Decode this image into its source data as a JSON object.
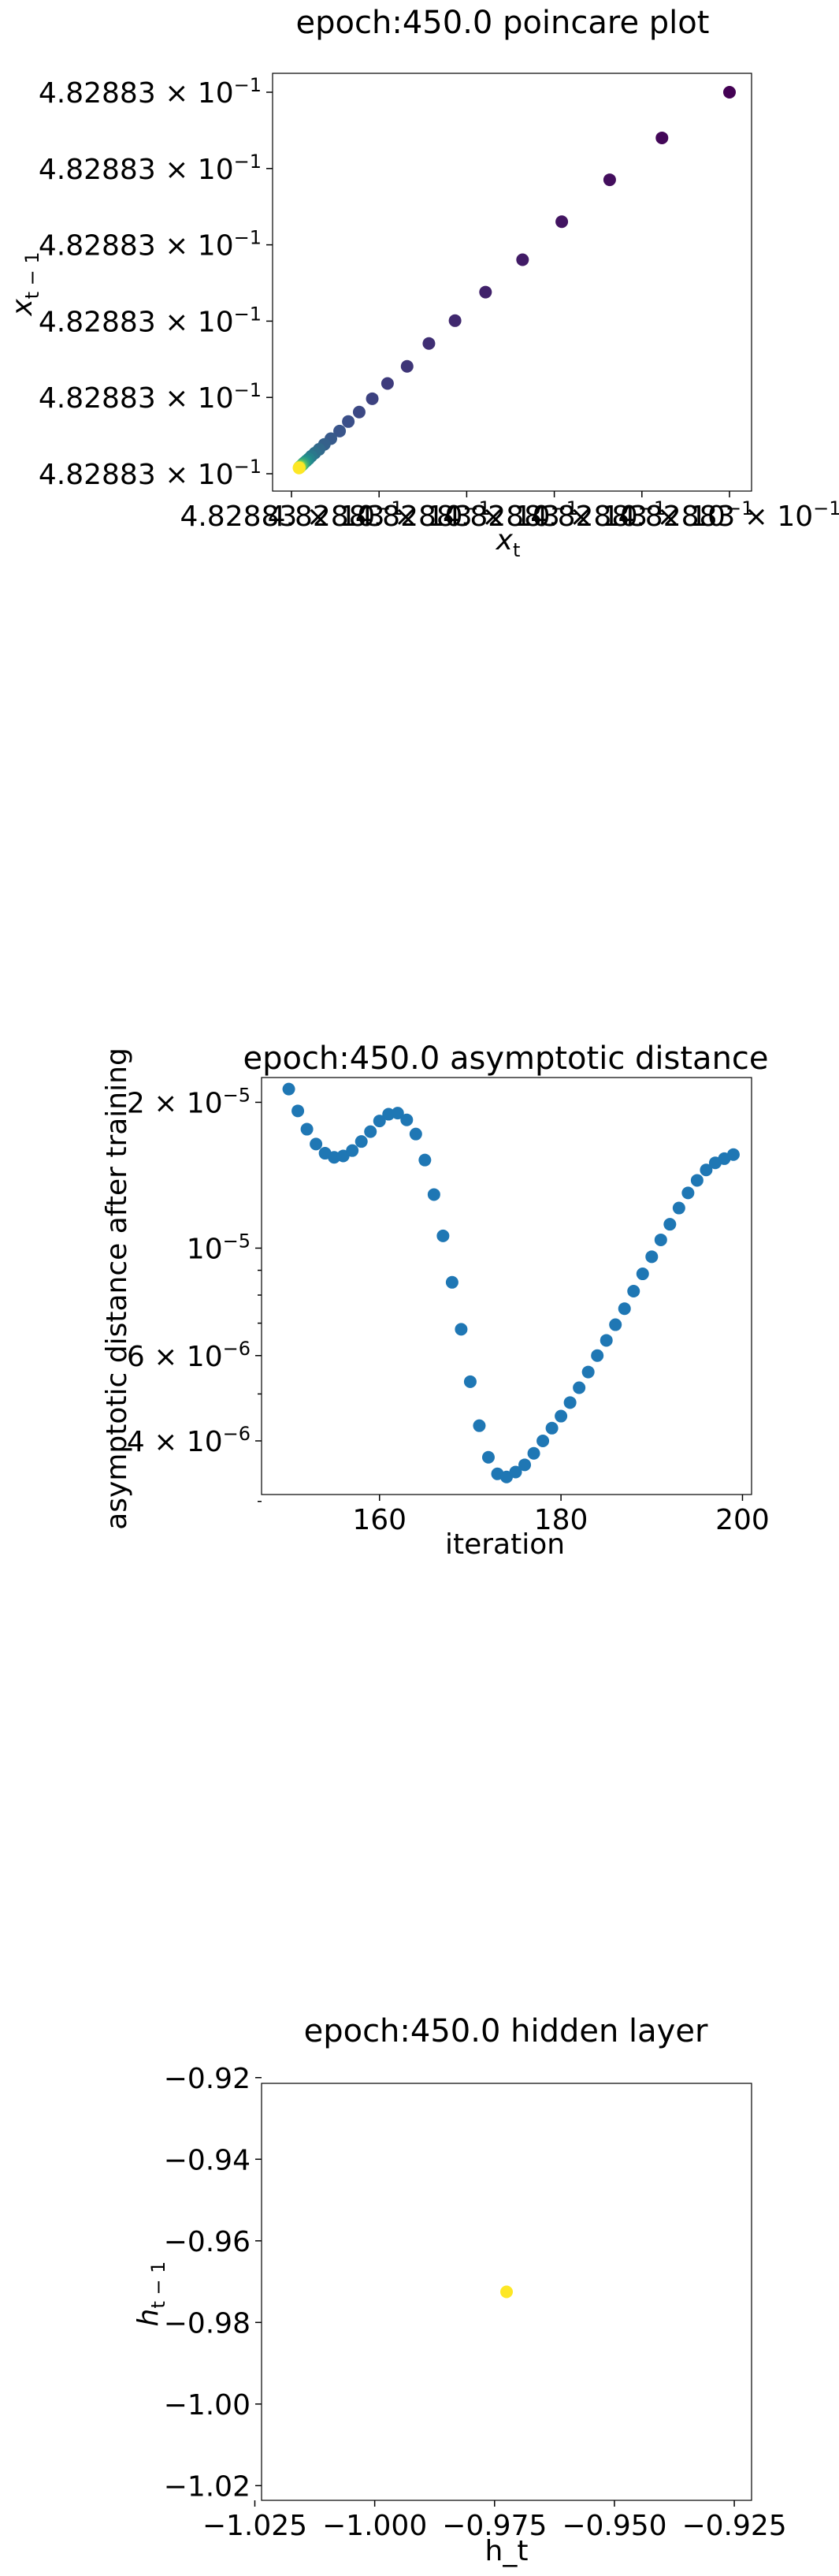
{
  "chart_data": [
    {
      "type": "scatter",
      "title": "epoch:450.0 poincare plot",
      "xlabel": "x",
      "xlabel_sub": "t",
      "ylabel": "x",
      "ylabel_sub": "t − 1",
      "x_tick_labels": [
        "4.82883 × 10",
        "4.82883 × 10",
        "4.82883 × 10",
        "4.82883 × 10",
        "4.82883 × 10",
        "4.82883 × 10"
      ],
      "x_tick_exponent": "−1",
      "y_tick_labels": [
        "4.82883 × 10",
        "4.82883 × 10",
        "4.82883 × 10",
        "4.82883 × 10",
        "4.82883 × 10",
        "4.82883 × 10"
      ],
      "y_tick_exponent": "−1",
      "xlim": [
        0,
        1
      ],
      "ylim": [
        0,
        1
      ],
      "note_units": "points shown in relative units; all ticks print 4.82883 × 10^-1",
      "colormap": [
        "#440154",
        "#3b528b",
        "#21918c",
        "#5ec962",
        "#fde725"
      ],
      "points": [
        {
          "x": 1.0,
          "y": 1.0,
          "c": 0.0
        },
        {
          "x": 0.845,
          "y": 0.88,
          "c": 0.02
        },
        {
          "x": 0.725,
          "y": 0.77,
          "c": 0.04
        },
        {
          "x": 0.615,
          "y": 0.66,
          "c": 0.06
        },
        {
          "x": 0.525,
          "y": 0.56,
          "c": 0.08
        },
        {
          "x": 0.44,
          "y": 0.475,
          "c": 0.1
        },
        {
          "x": 0.37,
          "y": 0.4,
          "c": 0.12
        },
        {
          "x": 0.31,
          "y": 0.34,
          "c": 0.14
        },
        {
          "x": 0.26,
          "y": 0.28,
          "c": 0.16
        },
        {
          "x": 0.215,
          "y": 0.235,
          "c": 0.18
        },
        {
          "x": 0.18,
          "y": 0.195,
          "c": 0.2
        },
        {
          "x": 0.15,
          "y": 0.16,
          "c": 0.22
        },
        {
          "x": 0.125,
          "y": 0.135,
          "c": 0.24
        },
        {
          "x": 0.105,
          "y": 0.11,
          "c": 0.26
        },
        {
          "x": 0.085,
          "y": 0.09,
          "c": 0.28
        },
        {
          "x": 0.07,
          "y": 0.075,
          "c": 0.31
        },
        {
          "x": 0.058,
          "y": 0.062,
          "c": 0.34
        },
        {
          "x": 0.048,
          "y": 0.052,
          "c": 0.37
        },
        {
          "x": 0.04,
          "y": 0.044,
          "c": 0.4
        },
        {
          "x": 0.034,
          "y": 0.037,
          "c": 0.44
        },
        {
          "x": 0.029,
          "y": 0.032,
          "c": 0.48
        },
        {
          "x": 0.025,
          "y": 0.028,
          "c": 0.52
        },
        {
          "x": 0.022,
          "y": 0.025,
          "c": 0.56
        },
        {
          "x": 0.02,
          "y": 0.022,
          "c": 0.6
        },
        {
          "x": 0.018,
          "y": 0.02,
          "c": 0.65
        },
        {
          "x": 0.016,
          "y": 0.018,
          "c": 0.7
        },
        {
          "x": 0.015,
          "y": 0.017,
          "c": 0.75
        },
        {
          "x": 0.014,
          "y": 0.016,
          "c": 0.8
        },
        {
          "x": 0.013,
          "y": 0.015,
          "c": 0.85
        },
        {
          "x": 0.013,
          "y": 0.014,
          "c": 0.9
        },
        {
          "x": 0.012,
          "y": 0.014,
          "c": 0.95
        },
        {
          "x": 0.012,
          "y": 0.013,
          "c": 1.0
        }
      ]
    },
    {
      "type": "scatter",
      "title": "epoch:450.0 asymptotic distance",
      "xlabel": "iteration",
      "ylabel": "asymptotic distance after training",
      "yscale": "log",
      "xlim": [
        147,
        201
      ],
      "ylim": [
        3.1e-06,
        2.25e-05
      ],
      "x_ticks": [
        160,
        180,
        200
      ],
      "x_tick_labels": [
        "160",
        "180",
        "200"
      ],
      "y_ticks": [
        {
          "value": 2e-05,
          "mantissa": "2 × 10",
          "exp": "−5"
        },
        {
          "value": 1e-05,
          "mantissa": "10",
          "exp": "−5"
        },
        {
          "value": 6e-06,
          "mantissa": "6 × 10",
          "exp": "−6"
        },
        {
          "value": 4e-06,
          "mantissa": "4 × 10",
          "exp": "−6"
        }
      ],
      "y_minor_ticks": [
        3e-06,
        5e-06,
        7e-06,
        8e-06,
        9e-06
      ],
      "color": "#1f77b4",
      "x": [
        150,
        151,
        152,
        153,
        154,
        155,
        156,
        157,
        158,
        159,
        160,
        161,
        162,
        163,
        164,
        165,
        166,
        167,
        168,
        169,
        170,
        171,
        172,
        173,
        174,
        175,
        176,
        177,
        178,
        179,
        180,
        181,
        182,
        183,
        184,
        185,
        186,
        187,
        188,
        189,
        190,
        191,
        192,
        193,
        194,
        195,
        196,
        197,
        198,
        199
      ],
      "y": [
        2.13e-05,
        1.92e-05,
        1.76e-05,
        1.64e-05,
        1.57e-05,
        1.54e-05,
        1.55e-05,
        1.59e-05,
        1.66e-05,
        1.74e-05,
        1.83e-05,
        1.89e-05,
        1.9e-05,
        1.84e-05,
        1.72e-05,
        1.52e-05,
        1.29e-05,
        1.06e-05,
        8.5e-06,
        6.8e-06,
        5.3e-06,
        4.3e-06,
        3.7e-06,
        3.42e-06,
        3.37e-06,
        3.45e-06,
        3.57e-06,
        3.77e-06,
        4e-06,
        4.25e-06,
        4.5e-06,
        4.8e-06,
        5.15e-06,
        5.55e-06,
        6e-06,
        6.45e-06,
        6.95e-06,
        7.5e-06,
        8.15e-06,
        8.85e-06,
        9.6e-06,
        1.04e-05,
        1.12e-05,
        1.21e-05,
        1.3e-05,
        1.38e-05,
        1.45e-05,
        1.5e-05,
        1.53e-05,
        1.56e-05
      ]
    },
    {
      "type": "scatter",
      "title": "epoch:450.0 hidden layer",
      "xlabel": "h_t",
      "ylabel": "h",
      "ylabel_sub": "t − 1",
      "xlim": [
        -1.0236,
        -0.9214
      ],
      "ylim": [
        -1.0236,
        -0.9214
      ],
      "x_ticks": [
        -1.025,
        -1.0,
        -0.975,
        -0.95,
        -0.925
      ],
      "x_tick_labels": [
        "−1.025",
        "−1.000",
        "−0.975",
        "−0.950",
        "−0.925"
      ],
      "y_ticks": [
        -0.92,
        -0.94,
        -0.96,
        -0.98,
        -1.0,
        -1.02
      ],
      "y_tick_labels": [
        "−0.92",
        "−0.94",
        "−0.96",
        "−0.98",
        "−1.00",
        "−1.02"
      ],
      "color": "#fde725",
      "points": [
        {
          "x": -0.9725,
          "y": -0.9725
        }
      ]
    }
  ]
}
